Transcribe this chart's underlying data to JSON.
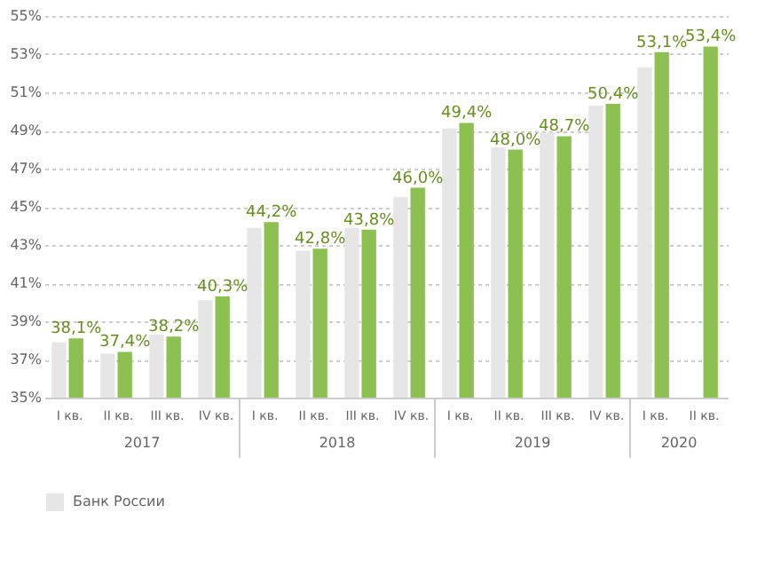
{
  "chart_data": {
    "type": "bar",
    "categories": [
      "I кв.",
      "II кв.",
      "III кв.",
      "IV кв.",
      "I кв.",
      "II кв.",
      "III кв.",
      "IV кв.",
      "I кв.",
      "II кв.",
      "III кв.",
      "IV кв.",
      "I кв.",
      "II кв."
    ],
    "series": [
      {
        "name": "Банк России",
        "color": "#e6e6e6",
        "values": [
          37.9,
          37.3,
          38.3,
          40.1,
          43.9,
          42.7,
          43.9,
          45.5,
          49.1,
          48.1,
          48.9,
          50.3,
          52.3,
          null
        ]
      },
      {
        "color": "#8cc152",
        "values": [
          38.1,
          37.4,
          38.2,
          40.3,
          44.2,
          42.8,
          43.8,
          46.0,
          49.4,
          48.0,
          48.7,
          50.4,
          53.1,
          53.4
        ],
        "value_labels": [
          "38,1%",
          "37,4%",
          "38,2%",
          "40,3%",
          "44,2%",
          "42,8%",
          "43,8%",
          "46,0%",
          "49,4%",
          "48,0%",
          "48,7%",
          "50,4%",
          "53,1%",
          "53,4%"
        ]
      }
    ],
    "annotations": [
      "2017",
      "2018",
      "2019",
      "2020"
    ],
    "ylim": [
      35,
      55
    ],
    "yticks": [
      {
        "value": 35,
        "label": "35%"
      },
      {
        "value": 37,
        "label": "37%"
      },
      {
        "value": 39,
        "label": "39%"
      },
      {
        "value": 41,
        "label": "41%"
      },
      {
        "value": 43,
        "label": "43%"
      },
      {
        "value": 45,
        "label": "45%"
      },
      {
        "value": 47,
        "label": "47%"
      },
      {
        "value": 49,
        "label": "49%"
      },
      {
        "value": 51,
        "label": "51%"
      },
      {
        "value": 53,
        "label": "53%"
      },
      {
        "value": 55,
        "label": "55%"
      }
    ],
    "grid": "y",
    "legend": "bottom"
  }
}
